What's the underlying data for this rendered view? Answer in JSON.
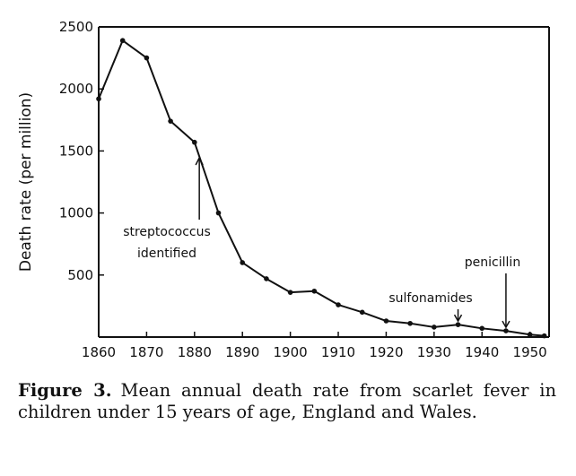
{
  "caption": {
    "label": "Figure 3.",
    "text": "Mean annual death rate from scarlet fever in children under 15 years of age, England and Wales."
  },
  "chart_data": {
    "type": "line",
    "title": "",
    "xlabel": "",
    "ylabel": "Death rate (per million)",
    "x": [
      1860,
      1865,
      1870,
      1875,
      1880,
      1885,
      1890,
      1895,
      1900,
      1905,
      1910,
      1915,
      1920,
      1925,
      1930,
      1935,
      1940,
      1945,
      1950,
      1953
    ],
    "series": [
      {
        "values": [
          1920,
          2390,
          2250,
          1740,
          1570,
          1000,
          600,
          470,
          360,
          370,
          260,
          200,
          130,
          110,
          80,
          100,
          70,
          50,
          20,
          10
        ]
      }
    ],
    "xlim": [
      1860,
      1954
    ],
    "ylim": [
      0,
      2500
    ],
    "xticks": [
      "1860",
      "1870",
      "1880",
      "1890",
      "1900",
      "1910",
      "1920",
      "1930",
      "1940",
      "1950"
    ],
    "yticks": [
      "500",
      "1000",
      "1500",
      "2000",
      "2500"
    ],
    "grid": false,
    "color": "#111111",
    "annotations": [
      {
        "lines": [
          "streptococcus",
          "identified"
        ],
        "x": 1881
      },
      {
        "lines": [
          "sulfonamides"
        ],
        "x": 1935
      },
      {
        "lines": [
          "penicillin"
        ],
        "x": 1945
      }
    ]
  }
}
